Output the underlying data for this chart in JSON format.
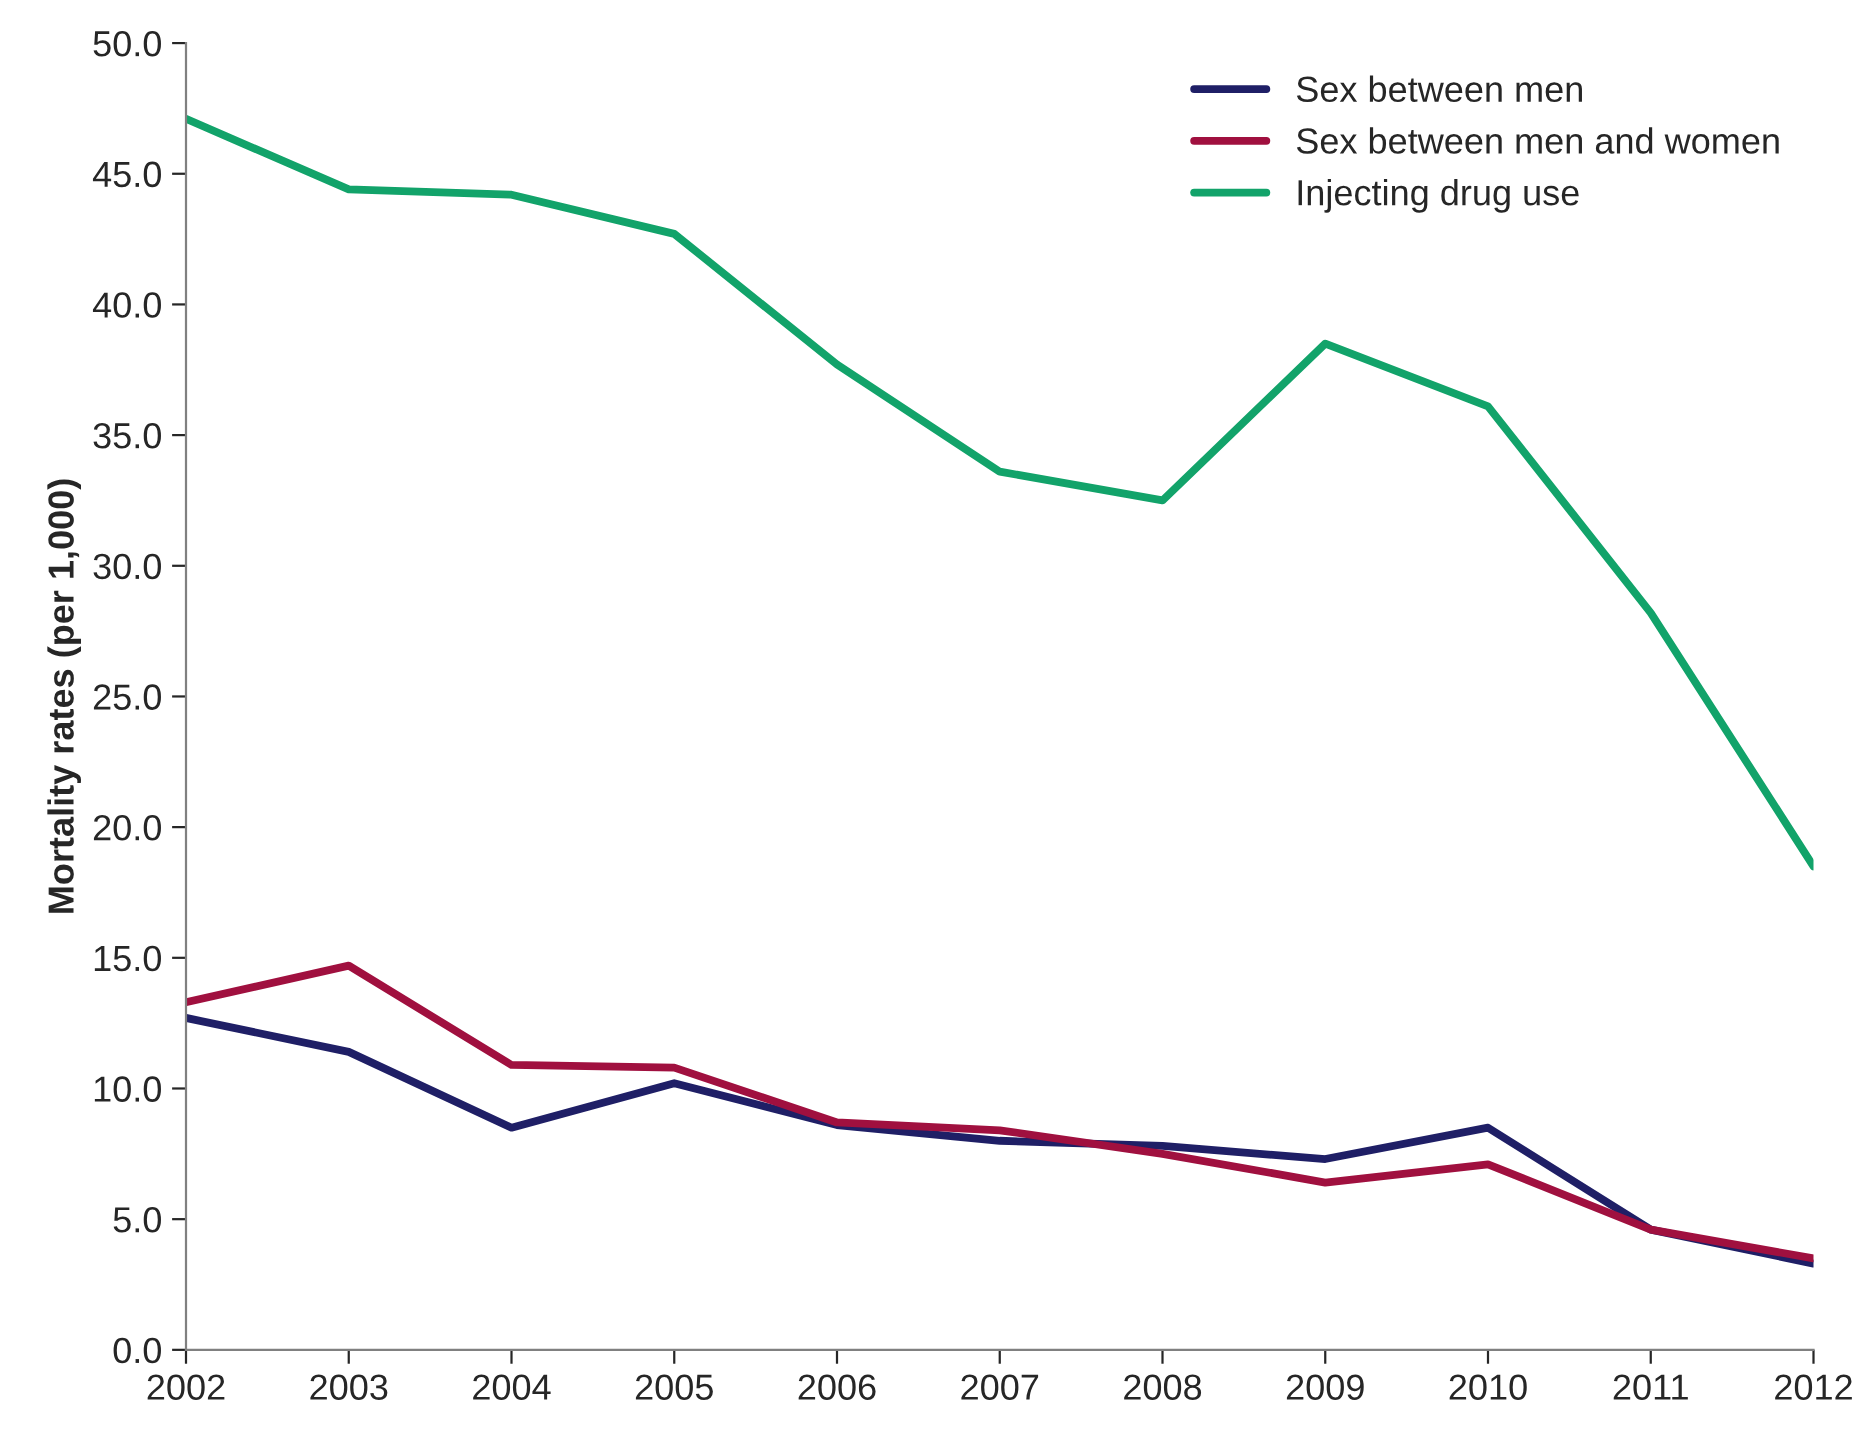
{
  "chart_data": {
    "type": "line",
    "ylabel": "Mortality rates (per 1,000)",
    "x": [
      2002,
      2003,
      2004,
      2005,
      2006,
      2007,
      2008,
      2009,
      2010,
      2011,
      2012
    ],
    "series": [
      {
        "name": "Sex between men",
        "color": "#1f1f66",
        "values": [
          12.7,
          11.4,
          8.5,
          10.2,
          8.6,
          8.0,
          7.8,
          7.3,
          8.5,
          4.6,
          3.3
        ]
      },
      {
        "name": "Sex between men and women",
        "color": "#a0103f",
        "values": [
          13.3,
          14.7,
          10.9,
          10.8,
          8.7,
          8.4,
          7.5,
          6.4,
          7.1,
          4.6,
          3.5
        ]
      },
      {
        "name": "Injecting drug use",
        "color": "#12a36a",
        "values": [
          47.1,
          44.4,
          44.2,
          42.7,
          37.7,
          33.6,
          32.5,
          38.5,
          36.1,
          28.2,
          18.5
        ]
      }
    ],
    "xlim": [
      2002,
      2012
    ],
    "xticks": [
      2002,
      2003,
      2004,
      2005,
      2006,
      2007,
      2008,
      2009,
      2010,
      2011,
      2012
    ],
    "ylim": [
      0,
      50
    ],
    "yticks": [
      {
        "value": 0,
        "label": "0.0"
      },
      {
        "value": 5,
        "label": "5.0"
      },
      {
        "value": 10,
        "label": "10.0"
      },
      {
        "value": 15,
        "label": "15.0"
      },
      {
        "value": 20,
        "label": "20.0"
      },
      {
        "value": 25,
        "label": "25.0"
      },
      {
        "value": 30,
        "label": "30.0"
      },
      {
        "value": 35,
        "label": "35.0"
      },
      {
        "value": 40,
        "label": "40.0"
      },
      {
        "value": 45,
        "label": "45.0"
      },
      {
        "value": 50,
        "label": "50.0"
      }
    ],
    "grid": false,
    "legend": "top right",
    "marker": "none",
    "line_style": "solid"
  }
}
